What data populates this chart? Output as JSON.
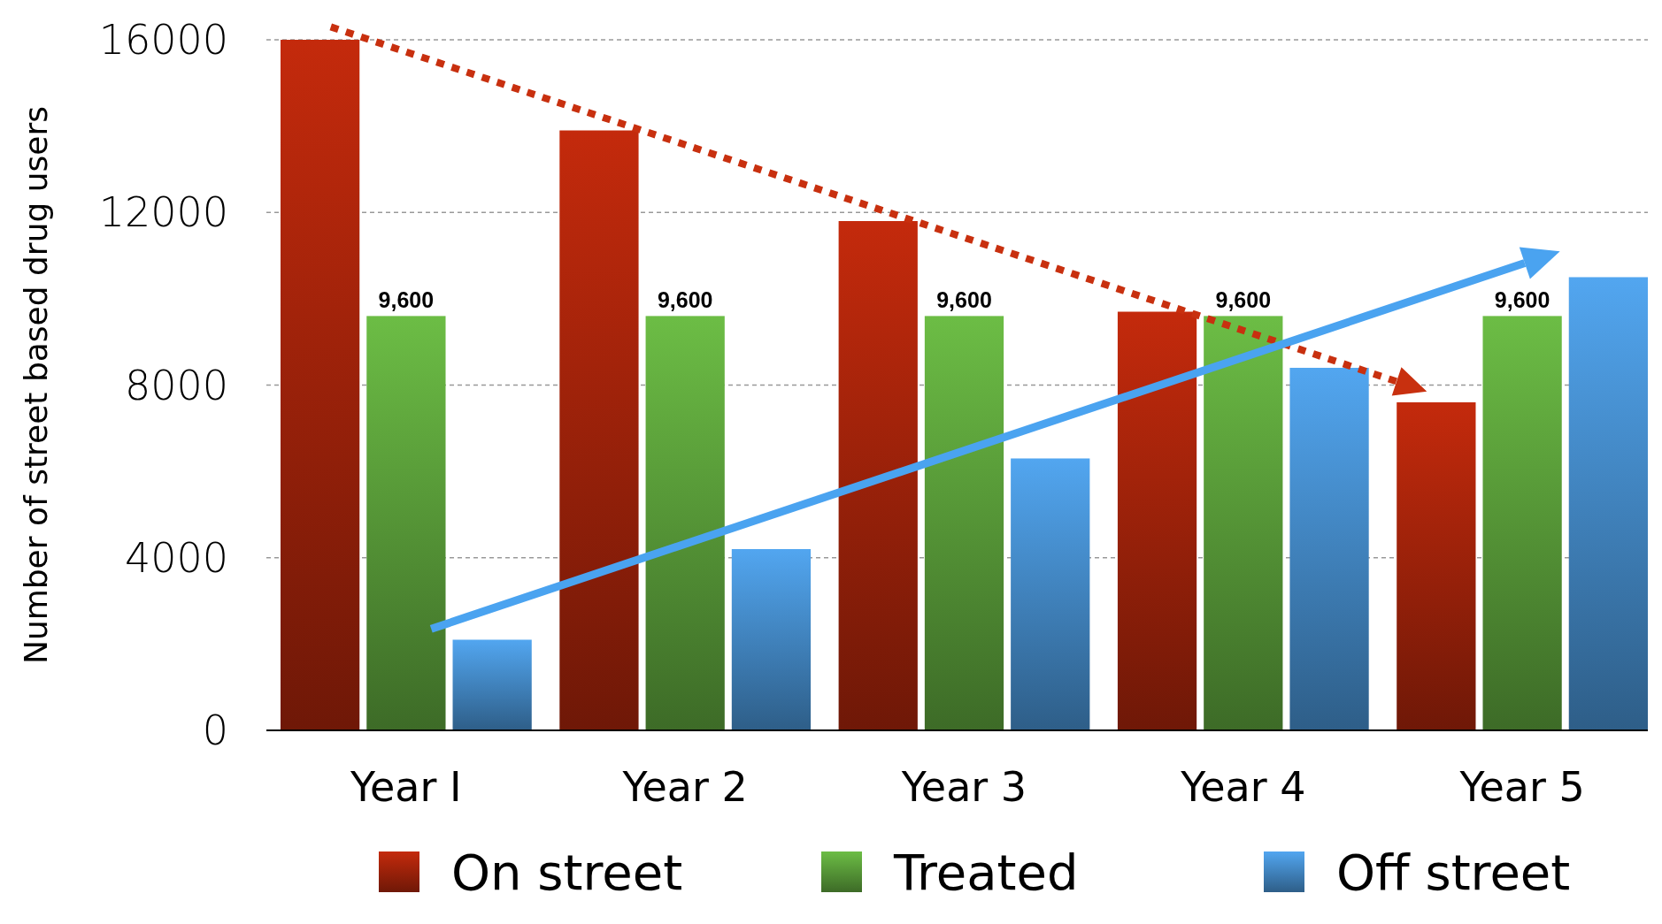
{
  "chart_data": {
    "type": "bar",
    "ylabel": "Number of street based drug users",
    "categories": [
      "Year I",
      "Year 2",
      "Year 3",
      "Year 4",
      "Year 5"
    ],
    "series": [
      {
        "name": "On street",
        "color": "#c42a0c",
        "values": [
          16000,
          13900,
          11800,
          9700,
          7600
        ]
      },
      {
        "name": "Treated",
        "color": "#6cbd45",
        "values": [
          9600,
          9600,
          9600,
          9600,
          9600
        ],
        "value_labels": [
          "9,600",
          "9,600",
          "9,600",
          "9,600",
          "9,600"
        ]
      },
      {
        "name": "Off street",
        "color": "#52a6f0",
        "values": [
          2100,
          4200,
          6300,
          8400,
          10500
        ]
      }
    ],
    "ylim": [
      0,
      16000
    ],
    "yticks": [
      0,
      4000,
      8000,
      12000,
      16000
    ],
    "grid": "y",
    "legend": "bottom"
  }
}
